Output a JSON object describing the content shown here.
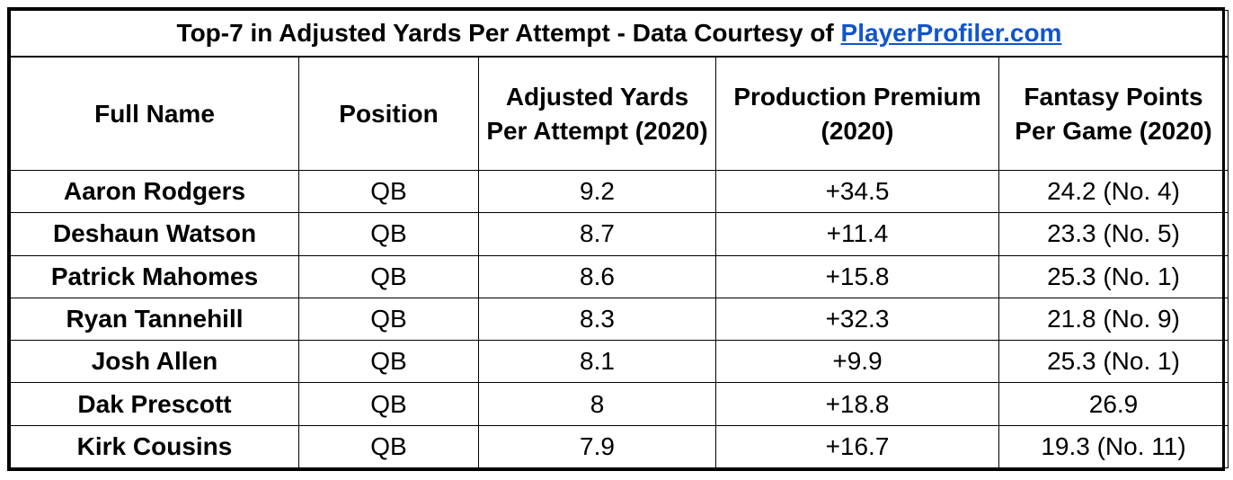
{
  "title": {
    "text": "Top-7 in Adjusted Yards Per Attempt - Data Courtesy of",
    "link": "PlayerProfiler.com"
  },
  "columns": [
    "Full Name",
    "Position",
    "Adjusted Yards Per Attempt (2020)",
    "Production Premium (2020)",
    "Fantasy Points Per Game (2020)"
  ],
  "rows": [
    {
      "name": "Aaron Rodgers",
      "position": "QB",
      "aypa": "9.2",
      "premium": "+34.5",
      "fppg": "24.2 (No. 4)"
    },
    {
      "name": "Deshaun Watson",
      "position": "QB",
      "aypa": "8.7",
      "premium": "+11.4",
      "fppg": "23.3 (No. 5)"
    },
    {
      "name": "Patrick Mahomes",
      "position": "QB",
      "aypa": "8.6",
      "premium": "+15.8",
      "fppg": "25.3 (No. 1)"
    },
    {
      "name": "Ryan Tannehill",
      "position": "QB",
      "aypa": "8.3",
      "premium": "+32.3",
      "fppg": "21.8 (No. 9)"
    },
    {
      "name": "Josh Allen",
      "position": "QB",
      "aypa": "8.1",
      "premium": "+9.9",
      "fppg": "25.3 (No. 1)"
    },
    {
      "name": "Dak Prescott",
      "position": "QB",
      "aypa": "8",
      "premium": "+18.8",
      "fppg": "26.9"
    },
    {
      "name": "Kirk Cousins",
      "position": "QB",
      "aypa": "7.9",
      "premium": "+16.7",
      "fppg": "19.3 (No. 11)"
    }
  ],
  "colors": {
    "link": "#1155cc",
    "border": "#000000",
    "background": "#ffffff"
  }
}
